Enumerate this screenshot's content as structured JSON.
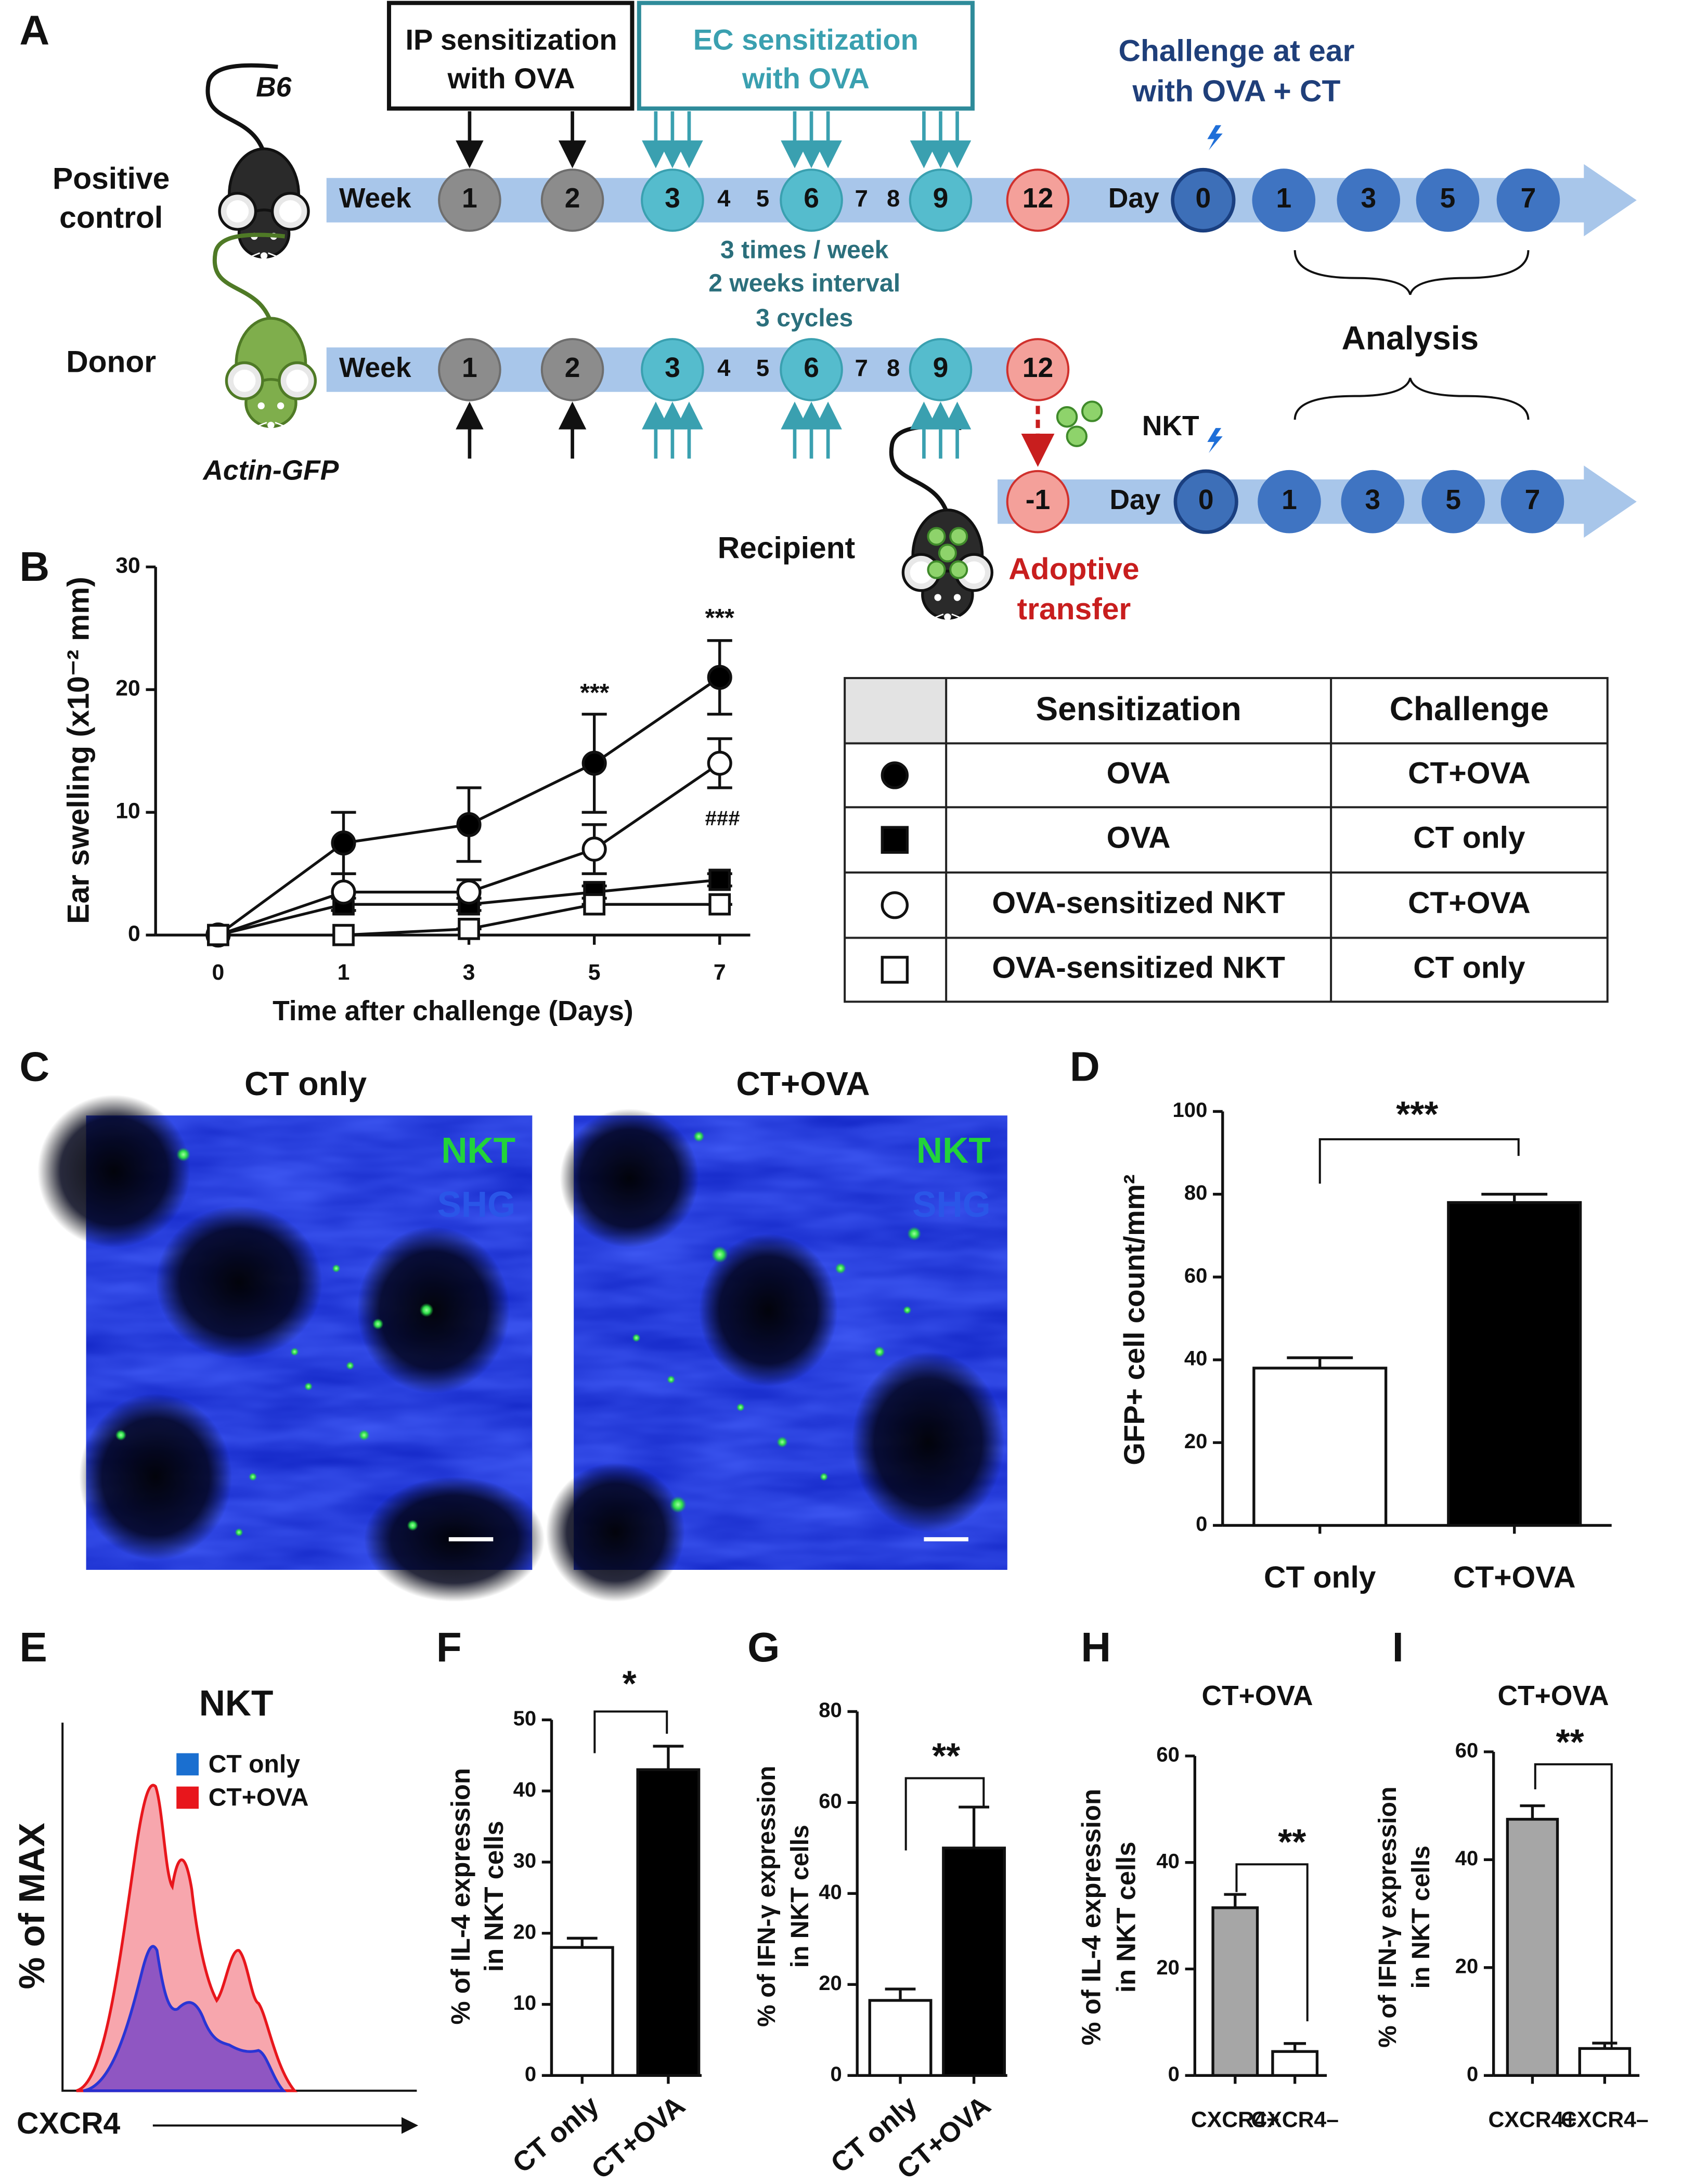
{
  "panels": {
    "A": {
      "label": "A",
      "strain_top": "B6",
      "positive_control": [
        "Positive",
        "control"
      ],
      "donor": "Donor",
      "strain_donor": "Actin-GFP",
      "recipient": "Recipient",
      "ip_box": [
        "IP sensitization",
        "with OVA"
      ],
      "ec_box": [
        "EC sensitization",
        "with OVA"
      ],
      "challenge": [
        "Challenge at ear",
        "with OVA + CT"
      ],
      "week_label": "Week",
      "day_label": "Day",
      "weeks": [
        "1",
        "2",
        "3",
        "4",
        "5",
        "6",
        "7",
        "8",
        "9",
        "12"
      ],
      "days": [
        "0",
        "1",
        "3",
        "5",
        "7"
      ],
      "transfer_day": "-1",
      "schedule": [
        "3 times / week",
        "2 weeks interval",
        "3 cycles"
      ],
      "analysis": "Analysis",
      "nkt": "NKT",
      "adoptive_transfer": [
        "Adoptive",
        "transfer"
      ]
    },
    "C": {
      "label": "C",
      "images": [
        {
          "title": "CT only",
          "channels": [
            "NKT",
            "SHG"
          ]
        },
        {
          "title": "CT+OVA",
          "channels": [
            "NKT",
            "SHG"
          ]
        }
      ]
    },
    "E": {
      "label": "E",
      "title": "NKT",
      "ylabel": "% of MAX",
      "xlabel": "CXCR4",
      "legend": [
        "CT only",
        "CT+OVA"
      ]
    }
  },
  "table": {
    "header": [
      "Sensitization",
      "Challenge"
    ],
    "rows": [
      [
        "OVA",
        "CT+OVA"
      ],
      [
        "OVA",
        "CT only"
      ],
      [
        "OVA-sensitized NKT",
        "CT+OVA"
      ],
      [
        "OVA-sensitized NKT",
        "CT only"
      ]
    ]
  },
  "chart_data": [
    {
      "type": "line",
      "label": "B",
      "ylabel": [
        "Ear swelling (x10⁻² mm)"
      ],
      "xlabel": "Time after challenge (Days)",
      "categories": [
        "0",
        "1",
        "3",
        "5",
        "7"
      ],
      "ylim": [
        0,
        30
      ],
      "yticks": [
        0,
        10,
        20,
        30
      ],
      "series": [
        {
          "marker": "circle",
          "fill": "#000000",
          "values": [
            0,
            7.5,
            9,
            14,
            21
          ],
          "errors": [
            0,
            2.5,
            3,
            4,
            3
          ]
        },
        {
          "marker": "square",
          "fill": "#000000",
          "values": [
            0,
            2.5,
            2.5,
            3.5,
            4.5
          ],
          "errors": [
            0,
            0.5,
            0.5,
            0.5,
            0.5
          ]
        },
        {
          "marker": "circle",
          "fill": "#ffffff",
          "values": [
            0,
            3.5,
            3.5,
            7,
            14
          ],
          "errors": [
            0,
            1.5,
            1,
            2,
            2
          ]
        },
        {
          "marker": "square",
          "fill": "#ffffff",
          "values": [
            0,
            0,
            0.5,
            2.5,
            2.5
          ],
          "errors": [
            0,
            0,
            0,
            0,
            0
          ]
        }
      ],
      "annotations": [
        "***",
        "***",
        "###"
      ]
    },
    {
      "type": "bar",
      "label": "D",
      "ylabel": [
        "GFP+ cell count/mm²"
      ],
      "categories": [
        "CT only",
        "CT+OVA"
      ],
      "values": [
        38,
        78
      ],
      "errors": [
        2.5,
        2
      ],
      "colors": [
        "#ffffff",
        "#000000"
      ],
      "ylim": [
        0,
        100
      ],
      "yticks": [
        0,
        20,
        40,
        60,
        80,
        100
      ],
      "annotations": [
        "***"
      ]
    },
    {
      "type": "bar",
      "label": "F",
      "ylabel": [
        "% of IL-4 expression",
        "in NKT cells"
      ],
      "categories": [
        "CT only",
        "CT+OVA"
      ],
      "values": [
        18,
        43
      ],
      "errors": [
        1.3,
        3.3
      ],
      "colors": [
        "#ffffff",
        "#000000"
      ],
      "ylim": [
        0,
        50
      ],
      "yticks": [
        0,
        10,
        20,
        30,
        40,
        50
      ],
      "annotations": [
        "*"
      ]
    },
    {
      "type": "bar",
      "label": "G",
      "ylabel": [
        "% of IFN-γ expression",
        "in NKT cells"
      ],
      "categories": [
        "CT only",
        "CT+OVA"
      ],
      "values": [
        16.5,
        50
      ],
      "errors": [
        2.5,
        9
      ],
      "colors": [
        "#ffffff",
        "#000000"
      ],
      "ylim": [
        0,
        80
      ],
      "yticks": [
        0,
        20,
        40,
        60,
        80
      ],
      "annotations": [
        "**"
      ]
    },
    {
      "type": "bar",
      "label": "H",
      "title": "CT+OVA",
      "ylabel": [
        "% of IL-4 expression",
        "in NKT cells"
      ],
      "categories": [
        "CXCR4+",
        "CXCR4–"
      ],
      "values": [
        31.5,
        4.5
      ],
      "errors": [
        2.5,
        1.5
      ],
      "colors": [
        "#a6a6a6",
        "#ffffff"
      ],
      "ylim": [
        0,
        60
      ],
      "yticks": [
        0,
        20,
        40,
        60
      ],
      "annotations": [
        "**"
      ]
    },
    {
      "type": "bar",
      "label": "I",
      "title": "CT+OVA",
      "ylabel": [
        "% of IFN-γ expression",
        "in NKT cells"
      ],
      "categories": [
        "CXCR4+",
        "CXCR4–"
      ],
      "values": [
        47.5,
        5
      ],
      "errors": [
        2.5,
        1
      ],
      "colors": [
        "#a6a6a6",
        "#ffffff"
      ],
      "ylim": [
        0,
        60
      ],
      "yticks": [
        0,
        20,
        40,
        60
      ],
      "annotations": [
        "**"
      ]
    }
  ]
}
